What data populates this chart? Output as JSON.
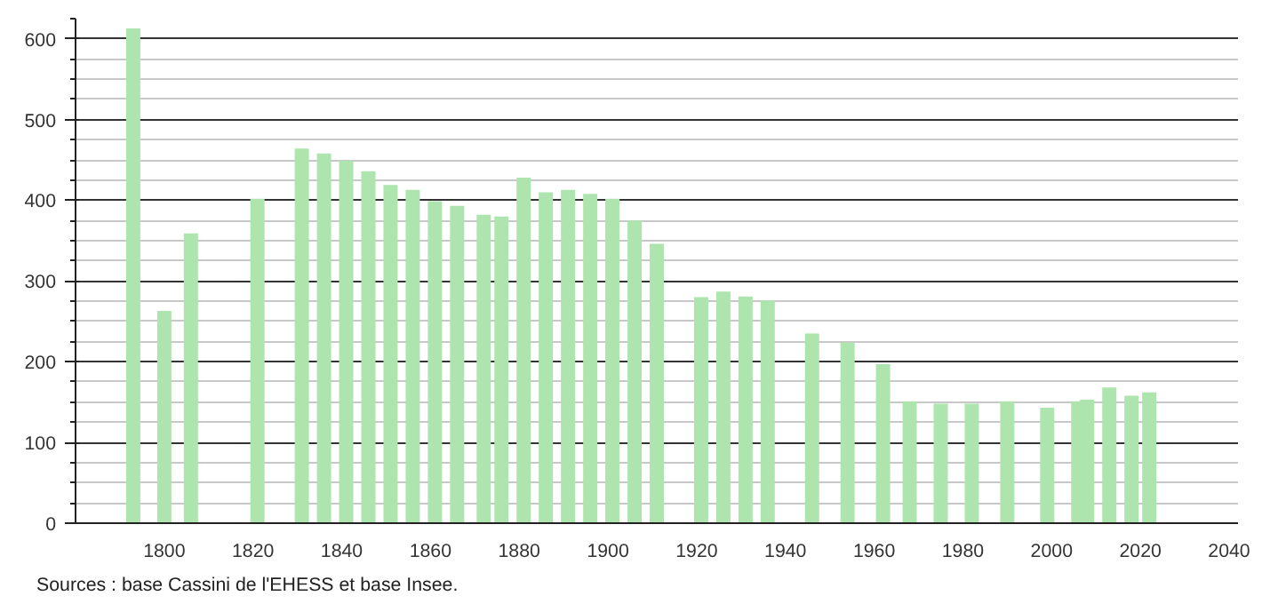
{
  "chart_data": {
    "type": "bar",
    "color": "#aee4ae",
    "x": [
      1793,
      1800,
      1806,
      1821,
      1831,
      1836,
      1841,
      1846,
      1851,
      1856,
      1861,
      1866,
      1872,
      1876,
      1881,
      1886,
      1891,
      1896,
      1901,
      1906,
      1911,
      1921,
      1926,
      1931,
      1936,
      1946,
      1954,
      1962,
      1968,
      1975,
      1982,
      1990,
      1999,
      2006,
      2008,
      2013,
      2018,
      2022
    ],
    "values": [
      613,
      263,
      359,
      402,
      464,
      458,
      449,
      436,
      419,
      413,
      399,
      393,
      382,
      380,
      428,
      410,
      413,
      408,
      402,
      375,
      346,
      280,
      287,
      281,
      276,
      235,
      224,
      197,
      151,
      148,
      148,
      151,
      143,
      151,
      153,
      168,
      158,
      162
    ],
    "xlim": [
      1780,
      2042
    ],
    "xticks": [
      1800,
      1820,
      1840,
      1860,
      1880,
      1900,
      1920,
      1940,
      1960,
      1980,
      2000,
      2020,
      2040
    ],
    "ylim": [
      0,
      625
    ],
    "yticks": [
      0,
      100,
      200,
      300,
      400,
      500,
      600
    ],
    "grid": "y",
    "annotations": [
      "Sources : base Cassini de l'EHESS et base Insee."
    ]
  }
}
